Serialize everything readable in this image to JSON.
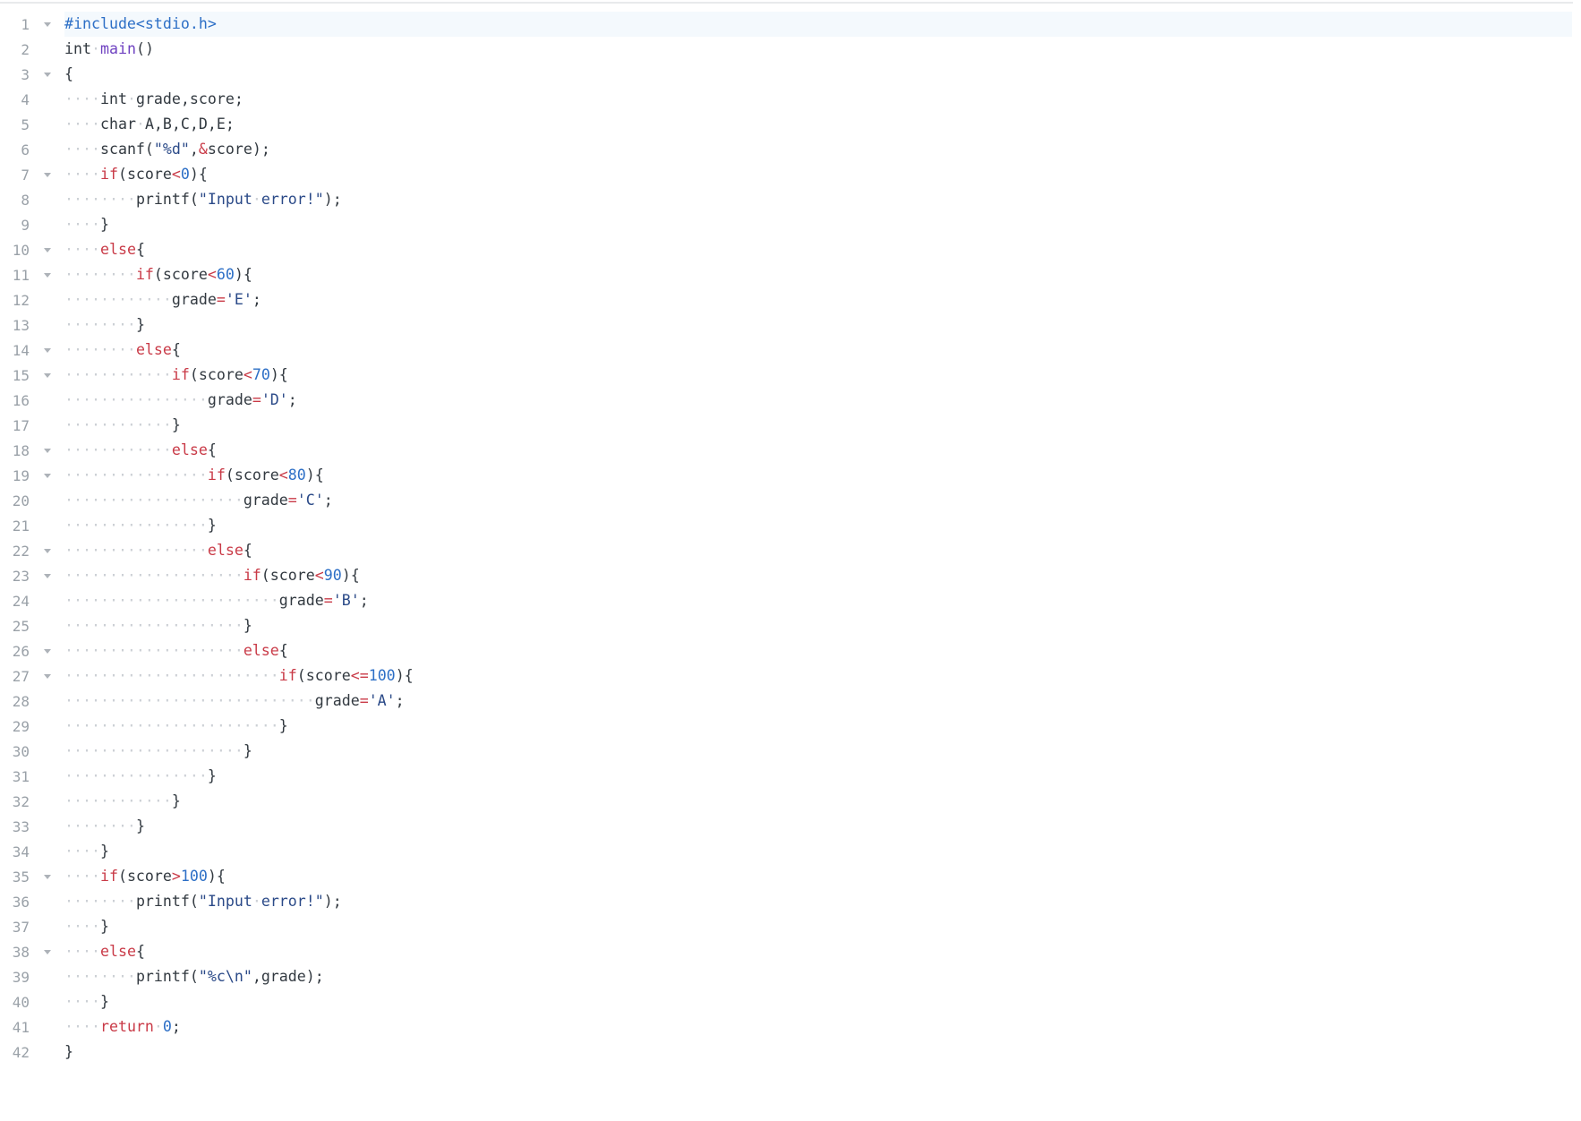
{
  "editor": {
    "language": "c",
    "active_line": 1,
    "total_lines": 42,
    "colors": {
      "background": "#ffffff",
      "active_line_highlight": "#f4f9fd",
      "keyword_red": "#c93a47",
      "number_blue": "#2d6fc6",
      "preprocessor_blue": "#2d6fc6",
      "string_navy": "#2b4a88",
      "function_purple": "#6f42c1",
      "default_text": "#323940",
      "line_number_gray": "#9aa1a8",
      "whitespace_dot_gray": "#ccd0d5",
      "fold_arrow_gray": "#adb2b8",
      "top_border": "#e8eaec"
    },
    "lines": [
      {
        "n": 1,
        "fold": true,
        "t": [
          [
            "pp",
            "#include<stdio.h>"
          ]
        ]
      },
      {
        "n": 2,
        "fold": false,
        "t": [
          [
            "d",
            "int"
          ],
          [
            "ws",
            " "
          ],
          [
            "fn",
            "main"
          ],
          [
            "d",
            "()"
          ]
        ]
      },
      {
        "n": 3,
        "fold": true,
        "t": [
          [
            "d",
            "{"
          ]
        ]
      },
      {
        "n": 4,
        "fold": false,
        "t": [
          [
            "ws",
            "    "
          ],
          [
            "d",
            "int"
          ],
          [
            "ws",
            " "
          ],
          [
            "d",
            "grade,score;"
          ]
        ]
      },
      {
        "n": 5,
        "fold": false,
        "t": [
          [
            "ws",
            "    "
          ],
          [
            "d",
            "char"
          ],
          [
            "ws",
            " "
          ],
          [
            "d",
            "A,B,C,D,E;"
          ]
        ]
      },
      {
        "n": 6,
        "fold": false,
        "t": [
          [
            "ws",
            "    "
          ],
          [
            "d",
            "scanf("
          ],
          [
            "s",
            "\"%d\""
          ],
          [
            "d",
            ","
          ],
          [
            "k",
            "&"
          ],
          [
            "d",
            "score);"
          ]
        ]
      },
      {
        "n": 7,
        "fold": true,
        "t": [
          [
            "ws",
            "    "
          ],
          [
            "k",
            "if"
          ],
          [
            "d",
            "(score"
          ],
          [
            "k",
            "<"
          ],
          [
            "n",
            "0"
          ],
          [
            "d",
            "){"
          ]
        ]
      },
      {
        "n": 8,
        "fold": false,
        "t": [
          [
            "ws",
            "        "
          ],
          [
            "d",
            "printf("
          ],
          [
            "s",
            "\"Input"
          ],
          [
            "ws",
            " "
          ],
          [
            "s",
            "error!\""
          ],
          [
            "d",
            ");"
          ]
        ]
      },
      {
        "n": 9,
        "fold": false,
        "t": [
          [
            "ws",
            "    "
          ],
          [
            "d",
            "}"
          ]
        ]
      },
      {
        "n": 10,
        "fold": true,
        "t": [
          [
            "ws",
            "    "
          ],
          [
            "k",
            "else"
          ],
          [
            "d",
            "{"
          ]
        ]
      },
      {
        "n": 11,
        "fold": true,
        "t": [
          [
            "ws",
            "        "
          ],
          [
            "k",
            "if"
          ],
          [
            "d",
            "(score"
          ],
          [
            "k",
            "<"
          ],
          [
            "n",
            "60"
          ],
          [
            "d",
            "){"
          ]
        ]
      },
      {
        "n": 12,
        "fold": false,
        "t": [
          [
            "ws",
            "            "
          ],
          [
            "d",
            "grade"
          ],
          [
            "k",
            "="
          ],
          [
            "s",
            "'E'"
          ],
          [
            "d",
            ";"
          ]
        ]
      },
      {
        "n": 13,
        "fold": false,
        "t": [
          [
            "ws",
            "        "
          ],
          [
            "d",
            "}"
          ]
        ]
      },
      {
        "n": 14,
        "fold": true,
        "t": [
          [
            "ws",
            "        "
          ],
          [
            "k",
            "else"
          ],
          [
            "d",
            "{"
          ]
        ]
      },
      {
        "n": 15,
        "fold": true,
        "t": [
          [
            "ws",
            "            "
          ],
          [
            "k",
            "if"
          ],
          [
            "d",
            "(score"
          ],
          [
            "k",
            "<"
          ],
          [
            "n",
            "70"
          ],
          [
            "d",
            "){"
          ]
        ]
      },
      {
        "n": 16,
        "fold": false,
        "t": [
          [
            "ws",
            "                "
          ],
          [
            "d",
            "grade"
          ],
          [
            "k",
            "="
          ],
          [
            "s",
            "'D'"
          ],
          [
            "d",
            ";"
          ]
        ]
      },
      {
        "n": 17,
        "fold": false,
        "t": [
          [
            "ws",
            "            "
          ],
          [
            "d",
            "}"
          ]
        ]
      },
      {
        "n": 18,
        "fold": true,
        "t": [
          [
            "ws",
            "            "
          ],
          [
            "k",
            "else"
          ],
          [
            "d",
            "{"
          ]
        ]
      },
      {
        "n": 19,
        "fold": true,
        "t": [
          [
            "ws",
            "                "
          ],
          [
            "k",
            "if"
          ],
          [
            "d",
            "(score"
          ],
          [
            "k",
            "<"
          ],
          [
            "n",
            "80"
          ],
          [
            "d",
            "){"
          ]
        ]
      },
      {
        "n": 20,
        "fold": false,
        "t": [
          [
            "ws",
            "                    "
          ],
          [
            "d",
            "grade"
          ],
          [
            "k",
            "="
          ],
          [
            "s",
            "'C'"
          ],
          [
            "d",
            ";"
          ]
        ]
      },
      {
        "n": 21,
        "fold": false,
        "t": [
          [
            "ws",
            "                "
          ],
          [
            "d",
            "}"
          ]
        ]
      },
      {
        "n": 22,
        "fold": true,
        "t": [
          [
            "ws",
            "                "
          ],
          [
            "k",
            "else"
          ],
          [
            "d",
            "{"
          ]
        ]
      },
      {
        "n": 23,
        "fold": true,
        "t": [
          [
            "ws",
            "                    "
          ],
          [
            "k",
            "if"
          ],
          [
            "d",
            "(score"
          ],
          [
            "k",
            "<"
          ],
          [
            "n",
            "90"
          ],
          [
            "d",
            "){"
          ]
        ]
      },
      {
        "n": 24,
        "fold": false,
        "t": [
          [
            "ws",
            "                        "
          ],
          [
            "d",
            "grade"
          ],
          [
            "k",
            "="
          ],
          [
            "s",
            "'B'"
          ],
          [
            "d",
            ";"
          ]
        ]
      },
      {
        "n": 25,
        "fold": false,
        "t": [
          [
            "ws",
            "                    "
          ],
          [
            "d",
            "}"
          ]
        ]
      },
      {
        "n": 26,
        "fold": true,
        "t": [
          [
            "ws",
            "                    "
          ],
          [
            "k",
            "else"
          ],
          [
            "d",
            "{"
          ]
        ]
      },
      {
        "n": 27,
        "fold": true,
        "t": [
          [
            "ws",
            "                        "
          ],
          [
            "k",
            "if"
          ],
          [
            "d",
            "(score"
          ],
          [
            "k",
            "<="
          ],
          [
            "n",
            "100"
          ],
          [
            "d",
            "){"
          ]
        ]
      },
      {
        "n": 28,
        "fold": false,
        "t": [
          [
            "ws",
            "                            "
          ],
          [
            "d",
            "grade"
          ],
          [
            "k",
            "="
          ],
          [
            "s",
            "'A'"
          ],
          [
            "d",
            ";"
          ]
        ]
      },
      {
        "n": 29,
        "fold": false,
        "t": [
          [
            "ws",
            "                        "
          ],
          [
            "d",
            "}"
          ]
        ]
      },
      {
        "n": 30,
        "fold": false,
        "t": [
          [
            "ws",
            "                    "
          ],
          [
            "d",
            "}"
          ]
        ]
      },
      {
        "n": 31,
        "fold": false,
        "t": [
          [
            "ws",
            "                "
          ],
          [
            "d",
            "}"
          ]
        ]
      },
      {
        "n": 32,
        "fold": false,
        "t": [
          [
            "ws",
            "            "
          ],
          [
            "d",
            "}"
          ]
        ]
      },
      {
        "n": 33,
        "fold": false,
        "t": [
          [
            "ws",
            "        "
          ],
          [
            "d",
            "}"
          ]
        ]
      },
      {
        "n": 34,
        "fold": false,
        "t": [
          [
            "ws",
            "    "
          ],
          [
            "d",
            "}"
          ]
        ]
      },
      {
        "n": 35,
        "fold": true,
        "t": [
          [
            "ws",
            "    "
          ],
          [
            "k",
            "if"
          ],
          [
            "d",
            "(score"
          ],
          [
            "k",
            ">"
          ],
          [
            "n",
            "100"
          ],
          [
            "d",
            "){"
          ]
        ]
      },
      {
        "n": 36,
        "fold": false,
        "t": [
          [
            "ws",
            "        "
          ],
          [
            "d",
            "printf("
          ],
          [
            "s",
            "\"Input"
          ],
          [
            "ws",
            " "
          ],
          [
            "s",
            "error!\""
          ],
          [
            "d",
            ");"
          ]
        ]
      },
      {
        "n": 37,
        "fold": false,
        "t": [
          [
            "ws",
            "    "
          ],
          [
            "d",
            "}"
          ]
        ]
      },
      {
        "n": 38,
        "fold": true,
        "t": [
          [
            "ws",
            "    "
          ],
          [
            "k",
            "else"
          ],
          [
            "d",
            "{"
          ]
        ]
      },
      {
        "n": 39,
        "fold": false,
        "t": [
          [
            "ws",
            "        "
          ],
          [
            "d",
            "printf("
          ],
          [
            "s",
            "\"%c\\n\""
          ],
          [
            "d",
            ",grade);"
          ]
        ]
      },
      {
        "n": 40,
        "fold": false,
        "t": [
          [
            "ws",
            "    "
          ],
          [
            "d",
            "}"
          ]
        ]
      },
      {
        "n": 41,
        "fold": false,
        "t": [
          [
            "ws",
            "    "
          ],
          [
            "k",
            "return"
          ],
          [
            "ws",
            " "
          ],
          [
            "n",
            "0"
          ],
          [
            "d",
            ";"
          ]
        ]
      },
      {
        "n": 42,
        "fold": false,
        "t": [
          [
            "d",
            "}"
          ]
        ]
      }
    ]
  }
}
